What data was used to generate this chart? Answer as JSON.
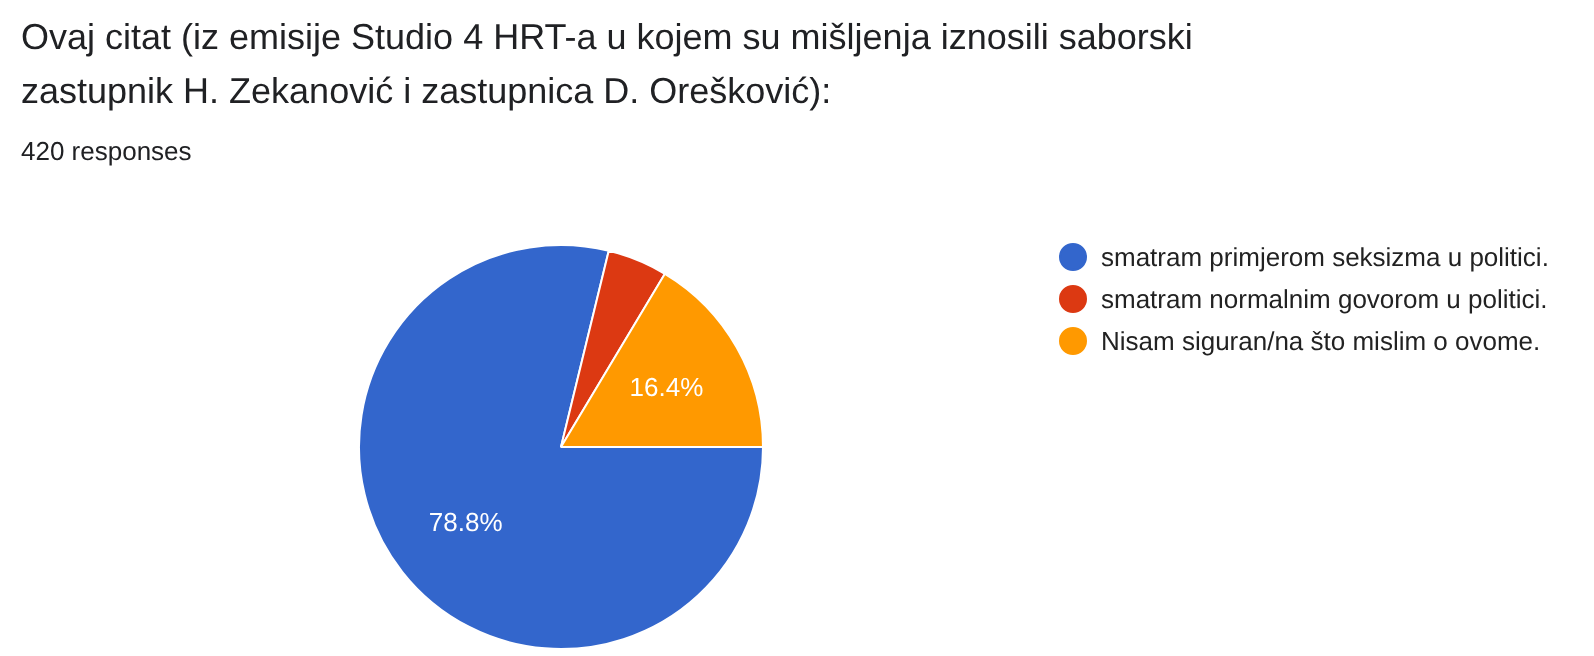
{
  "chart_data": {
    "type": "pie",
    "title": "Ovaj citat (iz emisije Studio 4 HRT-a u kojem su mišljenja iznosili saborski\nzastupnik H. Zekanović i zastupnica D. Orešković):",
    "subtitle": "420 responses",
    "categories": [
      "smatram primjerom seksizma u politici.",
      "smatram normalnim govorom u politici.",
      "Nisam siguran/na što mislim o ovome."
    ],
    "values": [
      78.8,
      4.8,
      16.4
    ],
    "colors": [
      "#3366cc",
      "#dc3912",
      "#ff9900"
    ],
    "value_labels": [
      "78.8%",
      null,
      "16.4%"
    ],
    "legend": "top right"
  }
}
